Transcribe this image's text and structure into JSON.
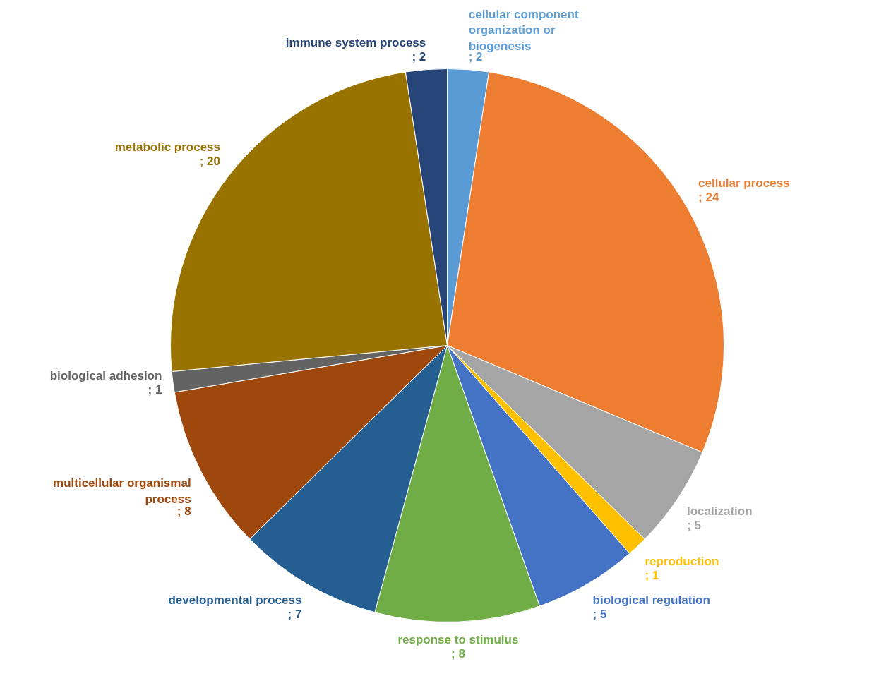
{
  "chart_data": {
    "type": "pie",
    "categories": [
      "cellular component organization or biogenesis",
      "cellular process",
      "localization",
      "reproduction",
      "biological regulation",
      "response to stimulus",
      "developmental process",
      "multicellular organismal process",
      "biological adhesion",
      "metabolic process",
      "immune system process"
    ],
    "values": [
      2,
      24,
      5,
      1,
      5,
      8,
      7,
      8,
      1,
      20,
      2
    ],
    "colors": [
      "#5b9bd5",
      "#ed7d31",
      "#a5a5a5",
      "#ffc000",
      "#4472c4",
      "#70ad47",
      "#255e91",
      "#9e480e",
      "#636363",
      "#997300",
      "#264478"
    ],
    "value_labels": [
      "; 2",
      "; 24",
      "; 5",
      "; 1",
      "; 5",
      "; 8",
      "; 7",
      "; 8",
      "; 1",
      "; 20",
      "; 2"
    ]
  }
}
